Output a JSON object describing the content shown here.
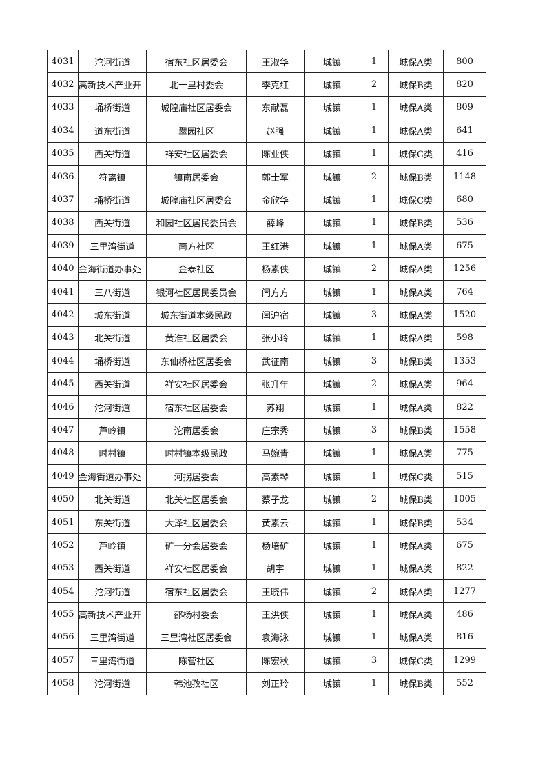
{
  "rows": [
    [
      "4031",
      "沱河街道",
      "宿东社区居委会",
      "王淑华",
      "城镇",
      "1",
      "城保A类",
      "800"
    ],
    [
      "4032",
      "高新技术产业开",
      "北十里村委会",
      "李克红",
      "城镇",
      "2",
      "城保B类",
      "820"
    ],
    [
      "4033",
      "埇桥街道",
      "城隍庙社区居委会",
      "东献磊",
      "城镇",
      "1",
      "城保A类",
      "809"
    ],
    [
      "4034",
      "道东街道",
      "翠园社区",
      "赵强",
      "城镇",
      "1",
      "城保A类",
      "641"
    ],
    [
      "4035",
      "西关街道",
      "祥安社区居委会",
      "陈业侠",
      "城镇",
      "1",
      "城保C类",
      "416"
    ],
    [
      "4036",
      "符离镇",
      "镇南居委会",
      "郭士军",
      "城镇",
      "2",
      "城保B类",
      "1148"
    ],
    [
      "4037",
      "埇桥街道",
      "城隍庙社区居委会",
      "金欣华",
      "城镇",
      "1",
      "城保C类",
      "680"
    ],
    [
      "4038",
      "西关街道",
      "和园社区居民委员会",
      "薛峰",
      "城镇",
      "1",
      "城保B类",
      "536"
    ],
    [
      "4039",
      "三里湾街道",
      "南方社区",
      "王红港",
      "城镇",
      "1",
      "城保A类",
      "675"
    ],
    [
      "4040",
      "金海街道办事处",
      "金泰社区",
      "杨素侠",
      "城镇",
      "2",
      "城保A类",
      "1256"
    ],
    [
      "4041",
      "三八街道",
      "银河社区居民委员会",
      "闫方方",
      "城镇",
      "1",
      "城保A类",
      "764"
    ],
    [
      "4042",
      "城东街道",
      "城东街道本级民政",
      "闫沪宿",
      "城镇",
      "3",
      "城保A类",
      "1520"
    ],
    [
      "4043",
      "北关街道",
      "黄淮社区居委会",
      "张小玲",
      "城镇",
      "1",
      "城保A类",
      "598"
    ],
    [
      "4044",
      "埇桥街道",
      "东仙桥社区居委会",
      "武征南",
      "城镇",
      "3",
      "城保B类",
      "1353"
    ],
    [
      "4045",
      "西关街道",
      "祥安社区居委会",
      "张升年",
      "城镇",
      "2",
      "城保A类",
      "964"
    ],
    [
      "4046",
      "沱河街道",
      "宿东社区居委会",
      "苏翔",
      "城镇",
      "1",
      "城保A类",
      "822"
    ],
    [
      "4047",
      "芦岭镇",
      "沱南居委会",
      "庄宗秀",
      "城镇",
      "3",
      "城保B类",
      "1558"
    ],
    [
      "4048",
      "时村镇",
      "时村镇本级民政",
      "马婉青",
      "城镇",
      "1",
      "城保A类",
      "775"
    ],
    [
      "4049",
      "金海街道办事处",
      "河拐居委会",
      "高素琴",
      "城镇",
      "1",
      "城保C类",
      "515"
    ],
    [
      "4050",
      "北关街道",
      "北关社区居委会",
      "蔡子龙",
      "城镇",
      "2",
      "城保B类",
      "1005"
    ],
    [
      "4051",
      "东关街道",
      "大泽社区居委会",
      "黄素云",
      "城镇",
      "1",
      "城保B类",
      "534"
    ],
    [
      "4052",
      "芦岭镇",
      "矿一分会居委会",
      "杨培矿",
      "城镇",
      "1",
      "城保A类",
      "675"
    ],
    [
      "4053",
      "西关街道",
      "祥安社区居委会",
      "胡宇",
      "城镇",
      "1",
      "城保A类",
      "822"
    ],
    [
      "4054",
      "沱河街道",
      "宿东社区居委会",
      "王晓伟",
      "城镇",
      "2",
      "城保A类",
      "1277"
    ],
    [
      "4055",
      "高新技术产业开",
      "邵杨村委会",
      "王洪侠",
      "城镇",
      "1",
      "城保A类",
      "486"
    ],
    [
      "4056",
      "三里湾街道",
      "三里湾社区居委会",
      "袁海泳",
      "城镇",
      "1",
      "城保A类",
      "816"
    ],
    [
      "4057",
      "三里湾街道",
      "陈营社区",
      "陈宏秋",
      "城镇",
      "3",
      "城保C类",
      "1299"
    ],
    [
      "4058",
      "沱河街道",
      "韩池孜社区",
      "刘正玲",
      "城镇",
      "1",
      "城保B类",
      "552"
    ]
  ]
}
